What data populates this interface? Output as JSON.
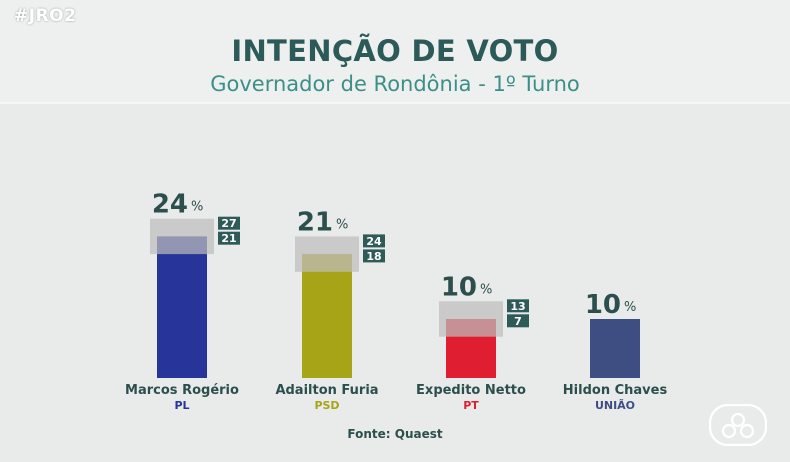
{
  "header": {
    "tag": "#JRO2",
    "title": "INTENÇÃO DE VOTO",
    "subtitle": "Governador de Rondônia - 1º Turno"
  },
  "chart_data": {
    "type": "bar",
    "title": "INTENÇÃO DE VOTO",
    "subtitle": "Governador de Rondônia - 1º Turno",
    "unit": "%",
    "categories": [
      "Marcos Rogério",
      "Adailton Furia",
      "Expedito Netto",
      "Hildon Chaves"
    ],
    "parties": [
      "PL",
      "PSD",
      "PT",
      "UNIÃO"
    ],
    "values": [
      24,
      21,
      10,
      10
    ],
    "range_high": [
      27,
      24,
      13,
      null
    ],
    "range_low": [
      21,
      18,
      7,
      null
    ],
    "colors": [
      "#27359a",
      "#a8a417",
      "#e01e31",
      "#3e4e83"
    ],
    "party_colors": [
      "#27359a",
      "#a8a417",
      "#e01e31",
      "#3e4e83"
    ],
    "ylim": [
      0,
      30
    ],
    "grid": false,
    "legend": "none"
  },
  "footer": {
    "source": "Fonte: Quaest"
  },
  "logo": {
    "icon": "tv-station-logo-icon"
  }
}
